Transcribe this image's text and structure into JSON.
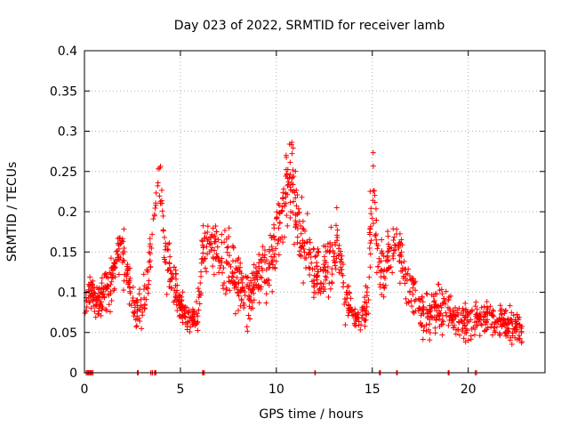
{
  "chart_data": {
    "type": "scatter",
    "title": "Day 023 of 2022, SRMTID for receiver lamb",
    "xlabel": "GPS time / hours",
    "ylabel": "SRMTID / TECUs",
    "xlim": [
      0,
      24
    ],
    "ylim": [
      0,
      0.4
    ],
    "xticks": [
      0,
      5,
      10,
      15,
      20
    ],
    "xtick_labels": [
      "0",
      "5",
      "10",
      "15",
      "20"
    ],
    "yticks": [
      0,
      0.05,
      0.1,
      0.15,
      0.2,
      0.25,
      0.3,
      0.35,
      0.4
    ],
    "ytick_labels": [
      "0",
      "0.05",
      "0.1",
      "0.15",
      "0.2",
      "0.25",
      "0.3",
      "0.35",
      "0.4"
    ],
    "grid": true,
    "marker": "+",
    "series_color": "#ff0000",
    "zero_points_x": [
      0.1,
      0.2,
      0.3,
      0.4,
      2.8,
      3.5,
      3.7,
      6.2,
      12.0,
      15.4,
      16.3,
      19.0,
      20.4
    ],
    "trend": [
      [
        0.0,
        0.075,
        0.015
      ],
      [
        0.3,
        0.105,
        0.02
      ],
      [
        0.7,
        0.09,
        0.02
      ],
      [
        1.2,
        0.11,
        0.03
      ],
      [
        1.6,
        0.13,
        0.03
      ],
      [
        1.9,
        0.16,
        0.03
      ],
      [
        2.2,
        0.12,
        0.03
      ],
      [
        2.6,
        0.08,
        0.025
      ],
      [
        3.0,
        0.08,
        0.025
      ],
      [
        3.3,
        0.11,
        0.03
      ],
      [
        3.6,
        0.19,
        0.03
      ],
      [
        3.9,
        0.25,
        0.03
      ],
      [
        4.2,
        0.15,
        0.03
      ],
      [
        4.6,
        0.12,
        0.03
      ],
      [
        5.0,
        0.08,
        0.02
      ],
      [
        5.5,
        0.065,
        0.015
      ],
      [
        5.9,
        0.07,
        0.02
      ],
      [
        6.2,
        0.16,
        0.04
      ],
      [
        6.6,
        0.17,
        0.03
      ],
      [
        7.0,
        0.15,
        0.035
      ],
      [
        7.5,
        0.14,
        0.04
      ],
      [
        8.0,
        0.11,
        0.04
      ],
      [
        8.5,
        0.095,
        0.035
      ],
      [
        9.0,
        0.12,
        0.035
      ],
      [
        9.5,
        0.13,
        0.035
      ],
      [
        10.0,
        0.16,
        0.04
      ],
      [
        10.4,
        0.21,
        0.05
      ],
      [
        10.8,
        0.24,
        0.05
      ],
      [
        11.2,
        0.17,
        0.04
      ],
      [
        11.6,
        0.16,
        0.04
      ],
      [
        12.0,
        0.13,
        0.04
      ],
      [
        12.4,
        0.12,
        0.04
      ],
      [
        12.8,
        0.14,
        0.04
      ],
      [
        13.2,
        0.16,
        0.04
      ],
      [
        13.6,
        0.1,
        0.03
      ],
      [
        14.0,
        0.07,
        0.02
      ],
      [
        14.4,
        0.07,
        0.02
      ],
      [
        14.8,
        0.09,
        0.03
      ],
      [
        15.0,
        0.26,
        0.07
      ],
      [
        15.3,
        0.14,
        0.04
      ],
      [
        15.6,
        0.12,
        0.04
      ],
      [
        16.0,
        0.15,
        0.04
      ],
      [
        16.3,
        0.17,
        0.03
      ],
      [
        16.7,
        0.12,
        0.03
      ],
      [
        17.1,
        0.1,
        0.03
      ],
      [
        17.5,
        0.08,
        0.03
      ],
      [
        18.0,
        0.075,
        0.03
      ],
      [
        18.5,
        0.08,
        0.025
      ],
      [
        19.0,
        0.08,
        0.025
      ],
      [
        19.5,
        0.065,
        0.02
      ],
      [
        20.0,
        0.065,
        0.025
      ],
      [
        20.5,
        0.065,
        0.02
      ],
      [
        21.0,
        0.075,
        0.025
      ],
      [
        21.5,
        0.065,
        0.02
      ],
      [
        22.0,
        0.06,
        0.02
      ],
      [
        22.5,
        0.055,
        0.02
      ],
      [
        22.8,
        0.055,
        0.02
      ]
    ]
  }
}
